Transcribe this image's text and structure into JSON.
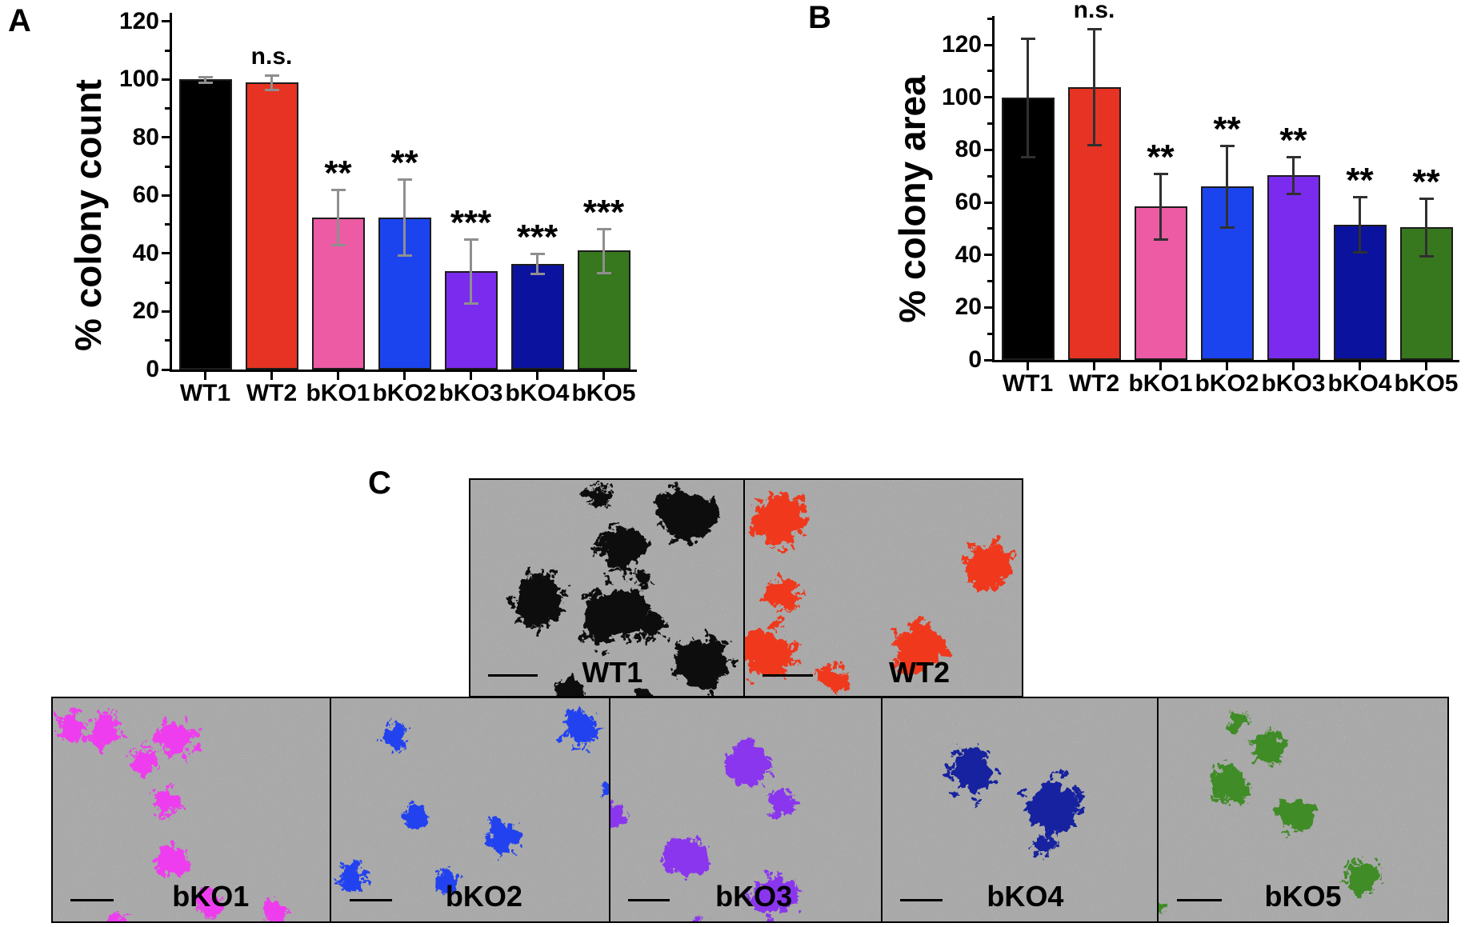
{
  "figure": {
    "panel_letters": [
      "A",
      "B",
      "C"
    ]
  },
  "chart_data": [
    {
      "type": "bar",
      "panel": "A",
      "title": "",
      "xlabel": "",
      "ylabel": "% colony count",
      "categories": [
        "WT1",
        "WT2",
        "bKO1",
        "bKO2",
        "bKO3",
        "bKO4",
        "bKO5"
      ],
      "values": [
        100,
        99,
        52.5,
        52.5,
        34,
        36.5,
        41
      ],
      "errors": [
        1,
        2.5,
        9.5,
        13,
        11,
        3.5,
        7.5
      ],
      "significance": [
        "",
        "n.s.",
        "**",
        "**",
        "***",
        "***",
        "***"
      ],
      "bar_colors": [
        "#000000",
        "#e63323",
        "#ec5ba4",
        "#1c44ee",
        "#7b2bee",
        "#0a129e",
        "#37771e"
      ],
      "error_color": "#8f8f8f",
      "yticks": [
        0,
        20,
        40,
        60,
        80,
        100,
        120
      ],
      "minor_tick_step": 10,
      "ylim": [
        0,
        123
      ],
      "grid": false,
      "legend": null
    },
    {
      "type": "bar",
      "panel": "B",
      "title": "",
      "xlabel": "",
      "ylabel": "% colony area",
      "categories": [
        "WT1",
        "WT2",
        "bKO1",
        "bKO2",
        "bKO3",
        "bKO4",
        "bKO5"
      ],
      "values": [
        100,
        104,
        58.5,
        66,
        70.5,
        51.5,
        50.5
      ],
      "errors": [
        22.5,
        22,
        12.5,
        15.5,
        7,
        10.5,
        11
      ],
      "significance": [
        "",
        "n.s.",
        "**",
        "**",
        "**",
        "**",
        "**"
      ],
      "bar_colors": [
        "#000000",
        "#e63323",
        "#ec5ba4",
        "#1c44ee",
        "#7b2bee",
        "#0a129e",
        "#37771e"
      ],
      "error_color": "#303030",
      "yticks": [
        0,
        20,
        40,
        60,
        80,
        100,
        120
      ],
      "minor_tick_step": 10,
      "ylim": [
        0,
        131
      ],
      "grid": false,
      "legend": null
    }
  ],
  "micrographs": {
    "background_color": "#a9a9a9",
    "panels": [
      {
        "label": "WT1",
        "color": "#111111",
        "colonies": [
          [
            0.47,
            0.08,
            0.045
          ],
          [
            0.79,
            0.16,
            0.1
          ],
          [
            0.55,
            0.33,
            0.09
          ],
          [
            0.63,
            0.46,
            0.035
          ],
          [
            0.25,
            0.55,
            0.1
          ],
          [
            0.53,
            0.63,
            0.115
          ],
          [
            0.66,
            0.68,
            0.05
          ],
          [
            0.36,
            0.97,
            0.05
          ],
          [
            0.85,
            0.86,
            0.1
          ],
          [
            0.63,
            0.99,
            0.025
          ]
        ]
      },
      {
        "label": "WT2",
        "color": "#f0391f",
        "colonies": [
          [
            0.13,
            0.2,
            0.095
          ],
          [
            0.88,
            0.4,
            0.085
          ],
          [
            0.14,
            0.52,
            0.06
          ],
          [
            0.08,
            0.8,
            0.1
          ],
          [
            0.31,
            0.92,
            0.05
          ],
          [
            0.62,
            0.78,
            0.095
          ]
        ]
      },
      {
        "label": "bKO1",
        "color": "#ee3cee",
        "colonies": [
          [
            0.07,
            0.13,
            0.055
          ],
          [
            0.19,
            0.14,
            0.06
          ],
          [
            0.33,
            0.28,
            0.05
          ],
          [
            0.45,
            0.18,
            0.065
          ],
          [
            0.41,
            0.46,
            0.05
          ],
          [
            0.43,
            0.73,
            0.055
          ],
          [
            0.56,
            0.92,
            0.05
          ],
          [
            0.24,
            1.01,
            0.035
          ],
          [
            0.8,
            0.96,
            0.045
          ]
        ]
      },
      {
        "label": "bKO2",
        "color": "#2343f0",
        "colonies": [
          [
            0.23,
            0.17,
            0.05
          ],
          [
            0.9,
            0.14,
            0.065
          ],
          [
            0.3,
            0.52,
            0.045
          ],
          [
            0.62,
            0.62,
            0.06
          ],
          [
            0.07,
            0.8,
            0.055
          ],
          [
            0.42,
            0.82,
            0.045
          ],
          [
            0.99,
            0.4,
            0.022
          ]
        ]
      },
      {
        "label": "bKO3",
        "color": "#8a35ee",
        "colonies": [
          [
            0.52,
            0.29,
            0.08
          ],
          [
            0.63,
            0.47,
            0.05
          ],
          [
            0.01,
            0.52,
            0.05
          ],
          [
            0.28,
            0.7,
            0.08
          ],
          [
            0.6,
            0.88,
            0.08
          ],
          [
            0.33,
            1.02,
            0.03
          ]
        ]
      },
      {
        "label": "bKO4",
        "color": "#16219f",
        "colonies": [
          [
            0.33,
            0.34,
            0.09
          ],
          [
            0.62,
            0.47,
            0.1
          ],
          [
            0.58,
            0.66,
            0.04
          ]
        ]
      },
      {
        "label": "bKO5",
        "color": "#3f8c28",
        "colonies": [
          [
            0.28,
            0.1,
            0.035
          ],
          [
            0.38,
            0.22,
            0.055
          ],
          [
            0.24,
            0.38,
            0.075
          ],
          [
            0.47,
            0.53,
            0.06
          ],
          [
            0.71,
            0.8,
            0.06
          ],
          [
            0.005,
            0.93,
            0.02
          ]
        ]
      }
    ]
  }
}
